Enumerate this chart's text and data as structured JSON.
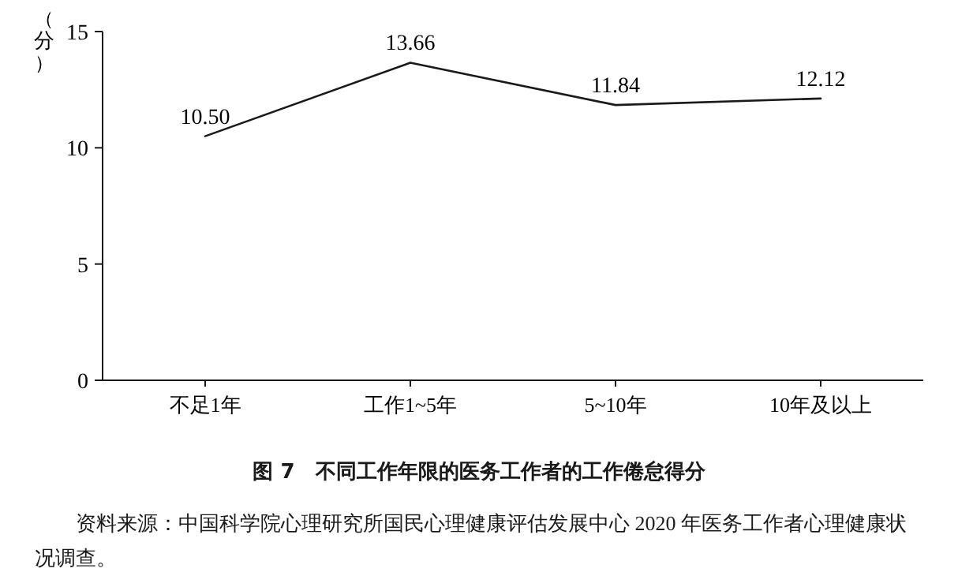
{
  "chart_data": {
    "type": "line",
    "title": "图 7　不同工作年限的医务工作者的工作倦怠得分",
    "ylabel": "（分）",
    "categories": [
      "不足1年",
      "工作1~5年",
      "5~10年",
      "10年及以上"
    ],
    "series": [
      {
        "color": "#1a1a1a",
        "values": [
          10.5,
          13.66,
          11.84,
          12.12
        ]
      }
    ],
    "value_labels": [
      "10.50",
      "13.66",
      "11.84",
      "12.12"
    ],
    "ylim": [
      0,
      15
    ],
    "yticks": [
      0,
      5,
      10,
      15
    ],
    "grid": false,
    "marker": "none",
    "line_style": "solid",
    "annotations": [
      "资料来源：中国科学院心理研究所国民心理健康评估发展中心 2020 年医务工作者心理健康状况调查。"
    ]
  }
}
